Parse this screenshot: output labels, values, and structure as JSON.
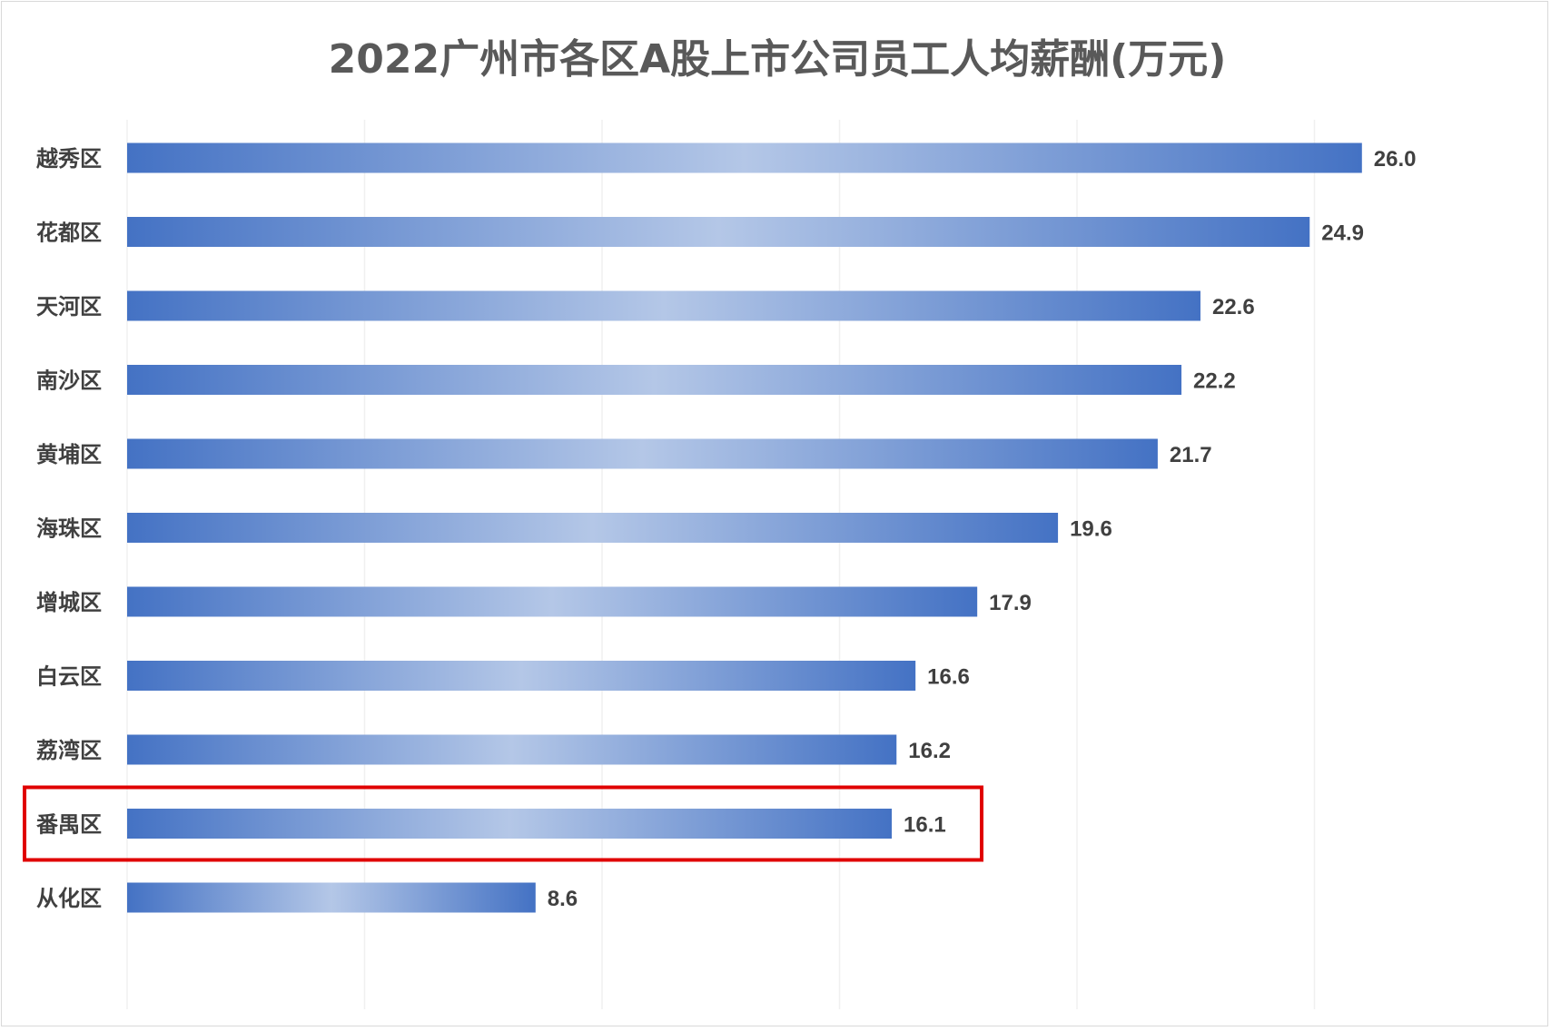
{
  "chart_data": {
    "type": "bar",
    "orientation": "horizontal",
    "title": "2022广州市各区A股上市公司员工人均薪酬(万元)",
    "xlabel": "",
    "ylabel": "",
    "categories": [
      "越秀区",
      "花都区",
      "天河区",
      "南沙区",
      "黄埔区",
      "海珠区",
      "增城区",
      "白云区",
      "荔湾区",
      "番禺区",
      "从化区"
    ],
    "values": [
      26.0,
      24.9,
      22.6,
      22.2,
      21.7,
      19.6,
      17.9,
      16.6,
      16.2,
      16.1,
      8.6
    ],
    "xlim": [
      0,
      30
    ],
    "grid": "vertical",
    "legend": "none",
    "highlight_category": "番禺区",
    "colors": {
      "bar_edge": "#4472c4",
      "bar_center": "#b4c7e7",
      "highlight_box": "#e00000",
      "gridline": "#f0f0f0",
      "text": "#404040",
      "title": "#595959"
    }
  }
}
